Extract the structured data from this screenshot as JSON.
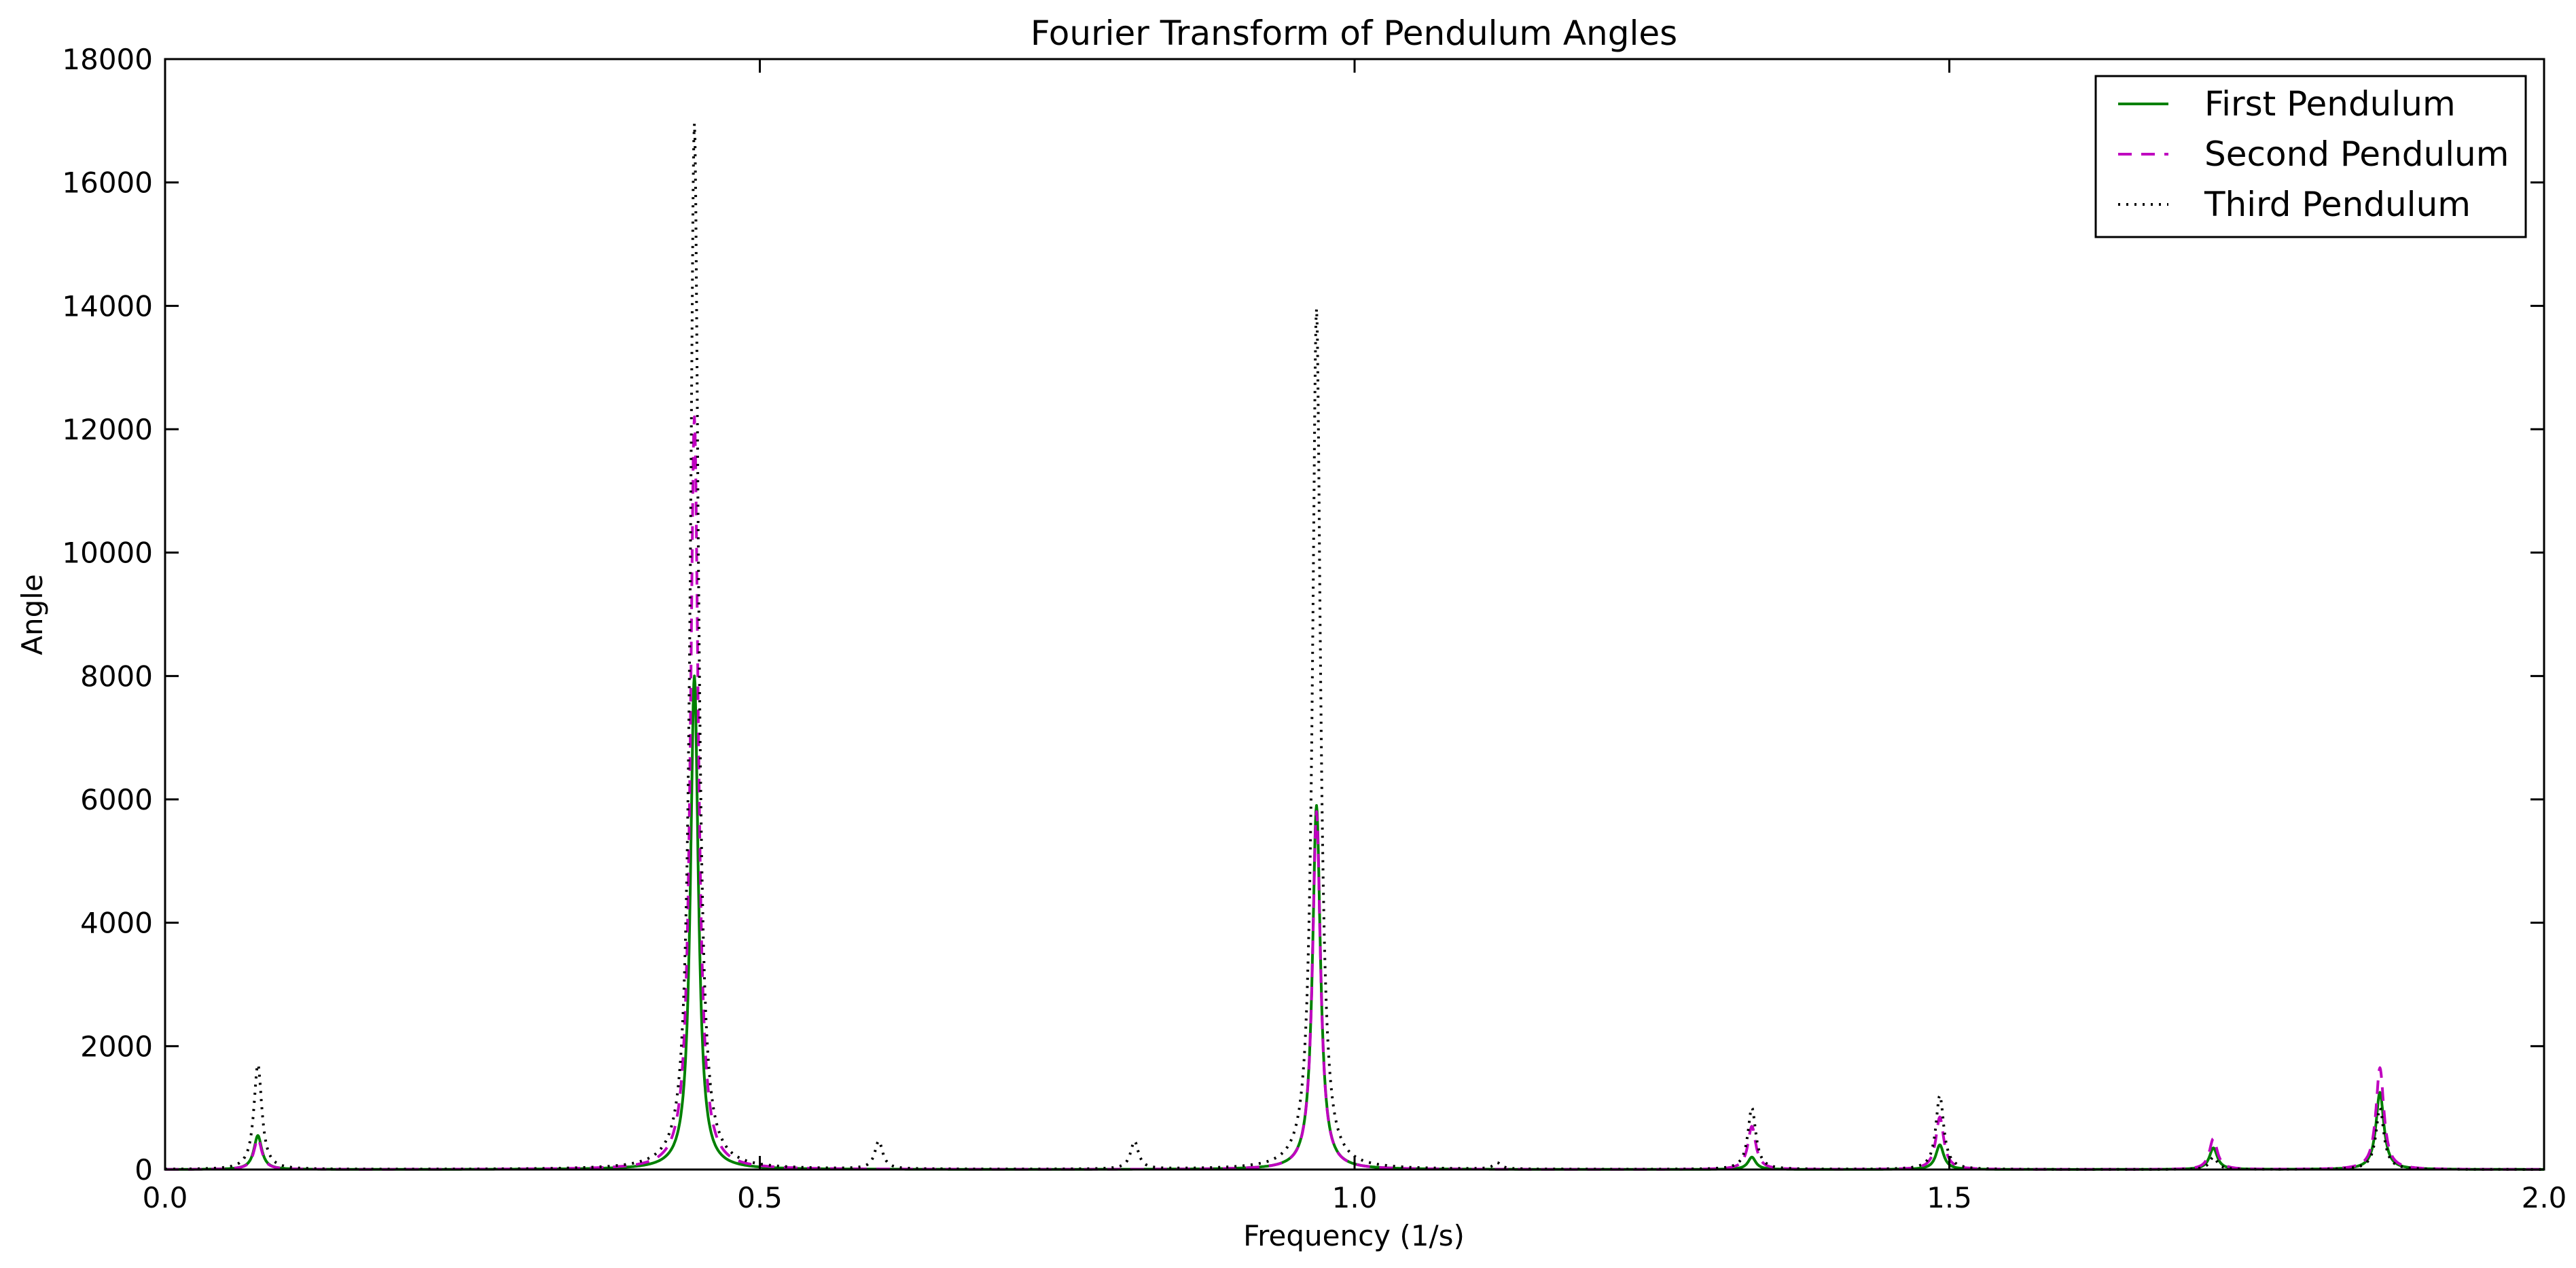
{
  "chart_data": {
    "type": "line",
    "title": "Fourier Transform of Pendulum Angles",
    "xlabel": "Frequency (1/s)",
    "ylabel": "Angle",
    "xlim": [
      0.0,
      2.0
    ],
    "ylim": [
      0,
      18000
    ],
    "x_ticks": [
      "0.0",
      "0.5",
      "1.0",
      "1.5",
      "2.0"
    ],
    "y_ticks": [
      "0",
      "2000",
      "4000",
      "6000",
      "8000",
      "10000",
      "12000",
      "14000",
      "16000",
      "18000"
    ],
    "grid": false,
    "legend_position": "top-right",
    "baseline_width": 0.004,
    "series": [
      {
        "name": "First Pendulum",
        "color": "#008000",
        "dash": "solid",
        "peaks": [
          {
            "x": 0.078,
            "y": 550
          },
          {
            "x": 0.445,
            "y": 8000
          },
          {
            "x": 0.968,
            "y": 5900
          },
          {
            "x": 1.334,
            "y": 200
          },
          {
            "x": 1.492,
            "y": 400
          },
          {
            "x": 1.722,
            "y": 350
          },
          {
            "x": 1.862,
            "y": 1250
          }
        ]
      },
      {
        "name": "Second Pendulum",
        "color": "#bf00bf",
        "dash": "dashed",
        "peaks": [
          {
            "x": 0.078,
            "y": 500
          },
          {
            "x": 0.445,
            "y": 12200
          },
          {
            "x": 0.968,
            "y": 5800
          },
          {
            "x": 1.334,
            "y": 700
          },
          {
            "x": 1.492,
            "y": 850
          },
          {
            "x": 1.722,
            "y": 500
          },
          {
            "x": 1.862,
            "y": 1650
          }
        ]
      },
      {
        "name": "Third Pendulum",
        "color": "#000000",
        "dash": "dotted",
        "peaks": [
          {
            "x": 0.078,
            "y": 1700
          },
          {
            "x": 0.445,
            "y": 16950
          },
          {
            "x": 0.6,
            "y": 450
          },
          {
            "x": 0.815,
            "y": 450
          },
          {
            "x": 0.968,
            "y": 13950
          },
          {
            "x": 1.12,
            "y": 100
          },
          {
            "x": 1.334,
            "y": 1000
          },
          {
            "x": 1.492,
            "y": 1200
          },
          {
            "x": 1.722,
            "y": 200
          },
          {
            "x": 1.862,
            "y": 1000
          }
        ]
      }
    ]
  }
}
